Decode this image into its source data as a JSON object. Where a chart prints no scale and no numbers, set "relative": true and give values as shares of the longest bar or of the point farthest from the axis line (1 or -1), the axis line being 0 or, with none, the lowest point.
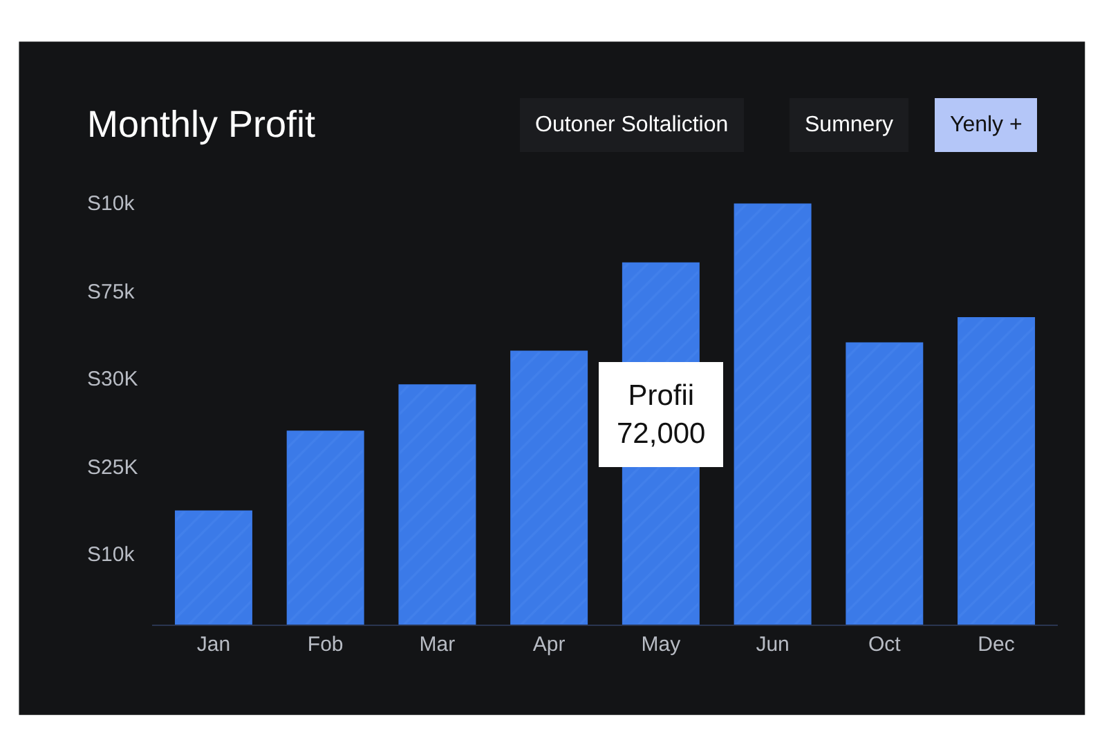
{
  "chart_data": {
    "type": "bar",
    "title": "Monthly Profit",
    "categories": [
      "Jan",
      "Fob",
      "Mar",
      "Apr",
      "May",
      "Jun",
      "Oct",
      "Dec"
    ],
    "values": [
      0.27,
      0.46,
      0.57,
      0.65,
      0.86,
      1,
      0.67,
      0.73
    ],
    "relative": true,
    "color": "#3b7ae8",
    "grid": false,
    "legend": false,
    "annotations": [
      "Profii\n72,000",
      "Outoner Soltaliction",
      "Sumnery",
      "Yenly +",
      "S10k",
      "S75k",
      "S30K",
      "S25K",
      "S10k"
    ]
  }
}
